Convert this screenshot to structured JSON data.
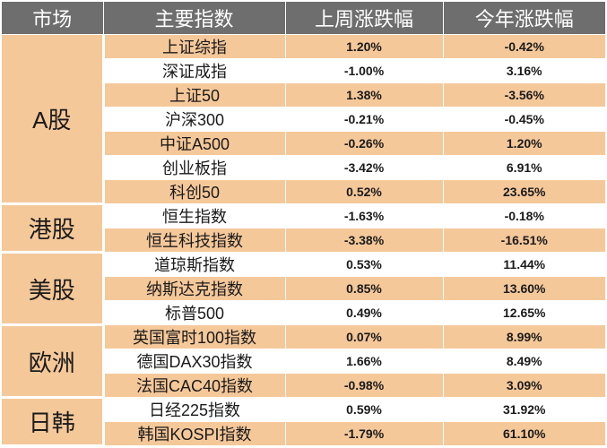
{
  "header": {
    "market": "市场",
    "index": "主要指数",
    "weekly": "上周涨跌幅",
    "ytd": "今年涨跌幅"
  },
  "groups": [
    {
      "market": "A股",
      "rows": [
        {
          "name": "上证综指",
          "weekly": "1.20%",
          "ytd": "-0.42%"
        },
        {
          "name": "深证成指",
          "weekly": "-1.00%",
          "ytd": "3.16%"
        },
        {
          "name": "上证50",
          "weekly": "1.38%",
          "ytd": "-3.56%"
        },
        {
          "name": "沪深300",
          "weekly": "-0.21%",
          "ytd": "-0.45%"
        },
        {
          "name": "中证A500",
          "weekly": "-0.26%",
          "ytd": "1.20%"
        },
        {
          "name": "创业板指",
          "weekly": "-3.42%",
          "ytd": "6.91%"
        },
        {
          "name": "科创50",
          "weekly": "0.52%",
          "ytd": "23.65%"
        }
      ]
    },
    {
      "market": "港股",
      "rows": [
        {
          "name": "恒生指数",
          "weekly": "-1.63%",
          "ytd": "-0.18%"
        },
        {
          "name": "恒生科技指数",
          "weekly": "-3.38%",
          "ytd": "-16.51%"
        }
      ]
    },
    {
      "market": "美股",
      "rows": [
        {
          "name": "道琼斯指数",
          "weekly": "0.53%",
          "ytd": "11.44%"
        },
        {
          "name": "纳斯达克指数",
          "weekly": "0.85%",
          "ytd": "13.60%"
        },
        {
          "name": "标普500",
          "weekly": "0.49%",
          "ytd": "12.65%"
        }
      ]
    },
    {
      "market": "欧洲",
      "rows": [
        {
          "name": "英国富时100指数",
          "weekly": "0.07%",
          "ytd": "8.99%"
        },
        {
          "name": "德国DAX30指数",
          "weekly": "1.66%",
          "ytd": "8.49%"
        },
        {
          "name": "法国CAC40指数",
          "weekly": "-0.98%",
          "ytd": "3.09%"
        }
      ]
    },
    {
      "market": "日韩",
      "rows": [
        {
          "name": "日经225指数",
          "weekly": "0.59%",
          "ytd": "31.92%"
        },
        {
          "name": "韩国KOSPI指数",
          "weekly": "-1.79%",
          "ytd": "61.10%"
        }
      ]
    }
  ]
}
